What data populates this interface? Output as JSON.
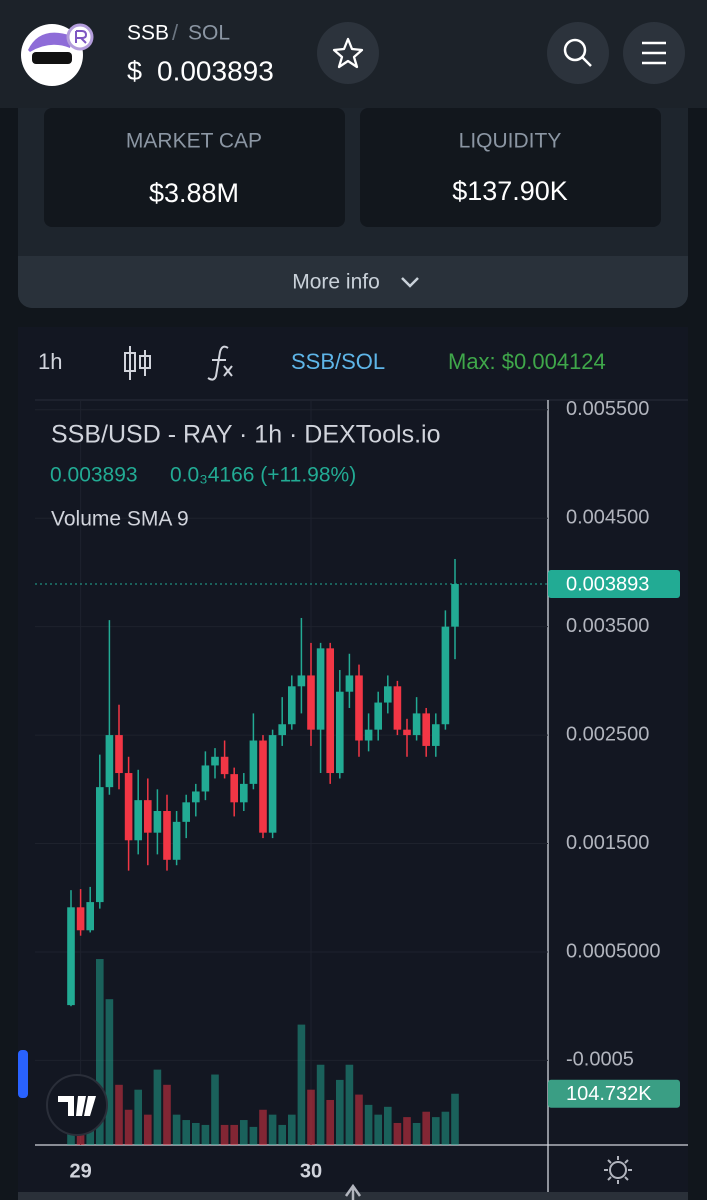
{
  "header": {
    "base": "SSB",
    "separator": "/",
    "quote": "SOL",
    "currency": "$",
    "price": "0.003893"
  },
  "stats": {
    "market_cap_label": "MARKET CAP",
    "market_cap": "$3.88M",
    "liquidity_label": "LIQUIDITY",
    "liquidity": "$137.90K",
    "more_info": "More info"
  },
  "toolbar": {
    "interval": "1h",
    "pair": "SSB/SOL",
    "max": "Max: $0.004124"
  },
  "chart_data": {
    "type": "candlestick",
    "legend": {
      "title": "SSB/USD - RAY · 1h · DEXTools.io",
      "close": "0.003893",
      "change": "0.0₃4166 (+11.98%)",
      "indicator": "Volume SMA 9"
    },
    "categories": [
      null,
      "29",
      null,
      null,
      null,
      null,
      null,
      null,
      null,
      null,
      null,
      null,
      null,
      null,
      null,
      null,
      null,
      null,
      null,
      null,
      null,
      null,
      null,
      null,
      null,
      "30",
      null,
      null,
      null,
      null,
      null,
      null,
      null,
      null,
      null,
      null,
      null,
      null,
      null,
      null,
      null
    ],
    "ohlc": [
      [
        1e-05,
        0.00107,
        0,
        0.000912
      ],
      [
        0.000912,
        0.00108,
        0.00065,
        0.0007
      ],
      [
        0.0007,
        0.0011,
        0.00068,
        0.00096
      ],
      [
        0.00096,
        0.00232,
        0.0009,
        0.00202
      ],
      [
        0.00202,
        0.00356,
        0.00195,
        0.0025
      ],
      [
        0.0025,
        0.00278,
        0.002,
        0.00215
      ],
      [
        0.00215,
        0.0023,
        0.00125,
        0.00153
      ],
      [
        0.00153,
        0.00218,
        0.0014,
        0.0019
      ],
      [
        0.0019,
        0.0021,
        0.0013,
        0.0016
      ],
      [
        0.0016,
        0.002,
        0.0014,
        0.0018
      ],
      [
        0.0018,
        0.00195,
        0.00125,
        0.00135
      ],
      [
        0.00135,
        0.0018,
        0.0013,
        0.0017
      ],
      [
        0.0017,
        0.00195,
        0.00155,
        0.00188
      ],
      [
        0.00188,
        0.00205,
        0.00175,
        0.00198
      ],
      [
        0.00198,
        0.00235,
        0.0019,
        0.00222
      ],
      [
        0.00222,
        0.00238,
        0.0021,
        0.0023
      ],
      [
        0.0023,
        0.00245,
        0.0021,
        0.00214
      ],
      [
        0.00214,
        0.0022,
        0.00175,
        0.00188
      ],
      [
        0.00188,
        0.00215,
        0.0018,
        0.00205
      ],
      [
        0.00205,
        0.0027,
        0.002,
        0.00245
      ],
      [
        0.00245,
        0.0025,
        0.00155,
        0.0016
      ],
      [
        0.0016,
        0.00255,
        0.00155,
        0.0025
      ],
      [
        0.0025,
        0.00285,
        0.0024,
        0.0026
      ],
      [
        0.0026,
        0.00305,
        0.00255,
        0.00295
      ],
      [
        0.00295,
        0.00358,
        0.0027,
        0.00305
      ],
      [
        0.00305,
        0.00335,
        0.0024,
        0.00255
      ],
      [
        0.00255,
        0.00335,
        0.00215,
        0.0033
      ],
      [
        0.0033,
        0.00335,
        0.00205,
        0.00215
      ],
      [
        0.00215,
        0.0031,
        0.0021,
        0.0029
      ],
      [
        0.0029,
        0.00325,
        0.00275,
        0.00305
      ],
      [
        0.00305,
        0.00315,
        0.0023,
        0.00245
      ],
      [
        0.00245,
        0.0027,
        0.00235,
        0.00255
      ],
      [
        0.00255,
        0.0029,
        0.00245,
        0.0028
      ],
      [
        0.0028,
        0.00305,
        0.0027,
        0.00295
      ],
      [
        0.00295,
        0.003,
        0.0025,
        0.00255
      ],
      [
        0.00255,
        0.00265,
        0.0023,
        0.0025
      ],
      [
        0.0025,
        0.00285,
        0.00245,
        0.0027
      ],
      [
        0.0027,
        0.00275,
        0.0023,
        0.0024
      ],
      [
        0.0024,
        0.0027,
        0.0023,
        0.0026
      ],
      [
        0.0026,
        0.00365,
        0.00255,
        0.0035
      ],
      [
        0.0035,
        0.004124,
        0.0032,
        0.003893
      ]
    ],
    "volume": [
      62000,
      103000,
      123000,
      380000,
      298000,
      123000,
      72000,
      113000,
      62000,
      154000,
      123000,
      62000,
      51000,
      45000,
      41000,
      144000,
      41000,
      41000,
      51000,
      37000,
      72000,
      62000,
      41000,
      62000,
      246000,
      113000,
      164000,
      92000,
      133000,
      164000,
      103000,
      82000,
      62000,
      78000,
      45000,
      57000,
      45000,
      68000,
      57000,
      68000,
      104732
    ],
    "volume_last_label": "104.732K",
    "volume_lim": [
      0,
      470000
    ],
    "last_price": 0.003893,
    "ylim": [
      -0.00128,
      0.00559
    ],
    "yticks": [
      {
        "value": 0.0055,
        "label": "0.005500"
      },
      {
        "value": 0.0045,
        "label": "0.004500"
      },
      {
        "value": 0.0035,
        "label": "0.003500"
      },
      {
        "value": 0.0025,
        "label": "0.002500"
      },
      {
        "value": 0.0015,
        "label": "0.001500"
      },
      {
        "value": 0.0005,
        "label": "0.0005000"
      },
      -0.0005
    ],
    "up_color": "#22ab94",
    "down_color": "#f23645",
    "grid": true
  }
}
